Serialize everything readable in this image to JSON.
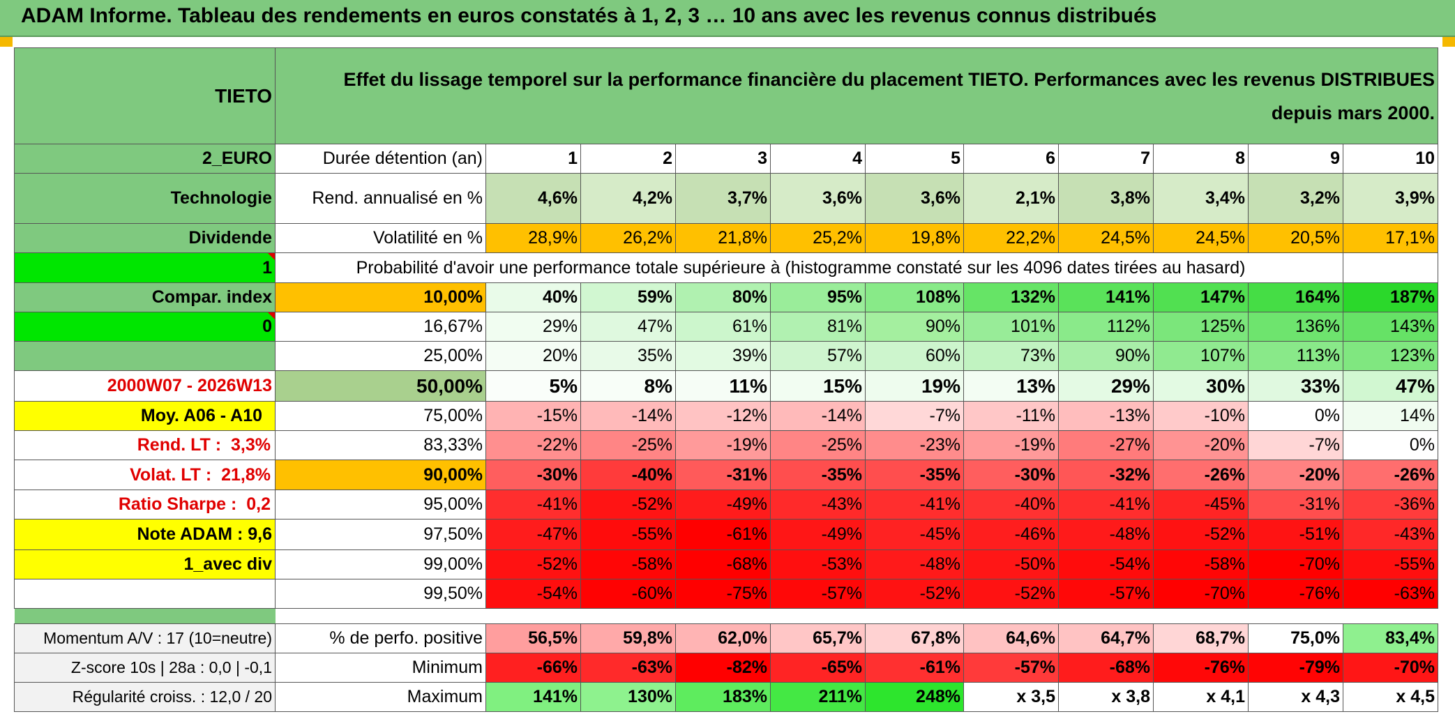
{
  "title": "ADAM Informe. Tableau des rendements en euros constatés à 1, 2, 3 … 10 ans avec les revenus connus distribués",
  "header": {
    "name": "TIETO",
    "description": "Effet du lissage temporel sur la performance financière du placement TIETO. Performances avec les revenus DISTRIBUES depuis mars 2000."
  },
  "left_panel": {
    "currency": "2_EURO",
    "sector": "Technologie",
    "dividend": "Dividende",
    "flag1": "1",
    "compar_index": "Compar. index",
    "flag0": "0",
    "period": "2000W07 - 2026W13",
    "moy": "Moy. A06 - A10",
    "rend_lt_label": "Rend. LT :",
    "rend_lt_value": "3,3%",
    "volat_lt_label": "Volat. LT :",
    "volat_lt_value": "21,8%",
    "sharpe_label": "Ratio Sharpe :",
    "sharpe_value": "0,2",
    "note": "Note ADAM : 9,6",
    "avec_div": "1_avec div",
    "momentum": "Momentum A/V : 17 (10=neutre)",
    "zscore": "Z-score 10s | 28a : 0,0 | -0,1",
    "regularite": "Régularité croiss. : 12,0 / 20"
  },
  "years_label": "Durée détention (an)",
  "years": [
    "1",
    "2",
    "3",
    "4",
    "5",
    "6",
    "7",
    "8",
    "9",
    "10"
  ],
  "rend_label": "Rend. annualisé en %",
  "rend": [
    "4,6%",
    "4,2%",
    "3,7%",
    "3,6%",
    "3,6%",
    "2,1%",
    "3,8%",
    "3,4%",
    "3,2%",
    "3,9%"
  ],
  "vol_label": "Volatilité en %",
  "vol": [
    "28,9%",
    "26,2%",
    "21,8%",
    "25,2%",
    "19,8%",
    "22,2%",
    "24,5%",
    "24,5%",
    "20,5%",
    "17,1%"
  ],
  "prob_header": "Probabilité d'avoir une performance totale supérieure à (histogramme constaté sur les 4096 dates tirées au hasard)",
  "quantiles": [
    {
      "p": "10,00%",
      "v": [
        "40%",
        "59%",
        "80%",
        "95%",
        "108%",
        "132%",
        "141%",
        "147%",
        "164%",
        "187%"
      ]
    },
    {
      "p": "16,67%",
      "v": [
        "29%",
        "47%",
        "61%",
        "81%",
        "90%",
        "101%",
        "112%",
        "125%",
        "136%",
        "143%"
      ]
    },
    {
      "p": "25,00%",
      "v": [
        "20%",
        "35%",
        "39%",
        "57%",
        "60%",
        "73%",
        "90%",
        "107%",
        "113%",
        "123%"
      ]
    },
    {
      "p": "50,00%",
      "v": [
        "5%",
        "8%",
        "11%",
        "15%",
        "19%",
        "13%",
        "29%",
        "30%",
        "33%",
        "47%"
      ]
    },
    {
      "p": "75,00%",
      "v": [
        "-15%",
        "-14%",
        "-12%",
        "-14%",
        "-7%",
        "-11%",
        "-13%",
        "-10%",
        "0%",
        "14%"
      ]
    },
    {
      "p": "83,33%",
      "v": [
        "-22%",
        "-25%",
        "-19%",
        "-25%",
        "-23%",
        "-19%",
        "-27%",
        "-20%",
        "-7%",
        "0%"
      ]
    },
    {
      "p": "90,00%",
      "v": [
        "-30%",
        "-40%",
        "-31%",
        "-35%",
        "-35%",
        "-30%",
        "-32%",
        "-26%",
        "-20%",
        "-26%"
      ]
    },
    {
      "p": "95,00%",
      "v": [
        "-41%",
        "-52%",
        "-49%",
        "-43%",
        "-41%",
        "-40%",
        "-41%",
        "-45%",
        "-31%",
        "-36%"
      ]
    },
    {
      "p": "97,50%",
      "v": [
        "-47%",
        "-55%",
        "-61%",
        "-49%",
        "-45%",
        "-46%",
        "-48%",
        "-52%",
        "-51%",
        "-43%"
      ]
    },
    {
      "p": "99,00%",
      "v": [
        "-52%",
        "-58%",
        "-68%",
        "-53%",
        "-48%",
        "-50%",
        "-54%",
        "-58%",
        "-70%",
        "-55%"
      ]
    },
    {
      "p": "99,50%",
      "v": [
        "-54%",
        "-60%",
        "-75%",
        "-57%",
        "-52%",
        "-52%",
        "-57%",
        "-70%",
        "-76%",
        "-63%"
      ]
    }
  ],
  "pos_label": "% de perfo. positive",
  "pos": [
    "56,5%",
    "59,8%",
    "62,0%",
    "65,7%",
    "67,8%",
    "64,6%",
    "64,7%",
    "68,7%",
    "75,0%",
    "83,4%"
  ],
  "min_label": "Minimum",
  "min": [
    "-66%",
    "-63%",
    "-82%",
    "-65%",
    "-61%",
    "-57%",
    "-68%",
    "-76%",
    "-79%",
    "-70%"
  ],
  "max_label": "Maximum",
  "max": [
    "141%",
    "130%",
    "183%",
    "211%",
    "248%",
    "x 3,5",
    "x 3,8",
    "x 4,1",
    "x 4,3",
    "x 4,5"
  ],
  "colors": {
    "header_green": "#7fc97f",
    "bright_green": "#00e600",
    "yellow": "#ffff00",
    "orange": "#ffc000",
    "rend_green": "#c6e0b4",
    "red_text": "#e00000"
  },
  "quantile_colors": [
    [
      "#e9fbe9",
      "#d1f7d1",
      "#b0f1b0",
      "#9aed9a",
      "#88ea88",
      "#66e466",
      "#5ae25a",
      "#51e051",
      "#45dd45",
      "#2bd82b"
    ],
    [
      "#f1fdf1",
      "#dff9df",
      "#ccf6cc",
      "#b1f1b1",
      "#a4ef9f",
      "#98ec98",
      "#8aea8a",
      "#7be67b",
      "#6ee46e",
      "#66e266"
    ],
    [
      "#f5fdf5",
      "#e8fae8",
      "#e2fae2",
      "#cff5cf",
      "#cdf5cd",
      "#c1f3c1",
      "#a8eea8",
      "#90ea90",
      "#89e989",
      "#80e780"
    ],
    [
      "#fafefa",
      "#f8fef8",
      "#f6fdf6",
      "#f2fdf2",
      "#eefcee",
      "#f3fdf3",
      "#e4fae4",
      "#e3fae3",
      "#e0f9e0",
      "#d1f7d1"
    ],
    [
      "#ffb3b3",
      "#ffbaba",
      "#ffc3c3",
      "#ffbaba",
      "#ffd8d8",
      "#ffc7c7",
      "#ffbdbd",
      "#ffcaca",
      "#ffffff",
      "#f0fcf0"
    ],
    [
      "#ff8f8f",
      "#ff8585",
      "#ff9a9a",
      "#ff8585",
      "#ff8c8c",
      "#ff9a9a",
      "#ff7b7b",
      "#ff9393",
      "#ffd6d6",
      "#ffffff"
    ],
    [
      "#ff5e5e",
      "#ff3b3b",
      "#ff5a5a",
      "#ff4e4e",
      "#ff4e4e",
      "#ff5e5e",
      "#ff5656",
      "#ff6e6e",
      "#ff8282",
      "#ff6e6e"
    ],
    [
      "#ff2e2e",
      "#ff1414",
      "#ff1c1c",
      "#ff2a2a",
      "#ff2e2e",
      "#ff3232",
      "#ff2e2e",
      "#ff2525",
      "#ff4e4e",
      "#ff3c3c"
    ],
    [
      "#ff1c1c",
      "#ff0c0c",
      "#ff0000",
      "#ff1616",
      "#ff2222",
      "#ff1e1e",
      "#ff1a1a",
      "#ff1212",
      "#ff1313",
      "#ff2828"
    ],
    [
      "#ff1212",
      "#ff0606",
      "#ff0000",
      "#ff0f0f",
      "#ff1a1a",
      "#ff1616",
      "#ff0c0c",
      "#ff0606",
      "#ff0000",
      "#ff0f0f"
    ],
    [
      "#ff0e0e",
      "#ff0202",
      "#ff0000",
      "#ff0808",
      "#ff1212",
      "#ff1212",
      "#ff0808",
      "#ff0000",
      "#ff0000",
      "#ff0000"
    ]
  ],
  "pos_colors": [
    "#ff9e9e",
    "#ffa9a9",
    "#ffb4b4",
    "#ffc6c6",
    "#ffd2d2",
    "#ffc2c2",
    "#ffc3c3",
    "#ffd6d6",
    "#ffffff",
    "#8ff08f"
  ],
  "min_colors": [
    "#ff2020",
    "#ff2a2a",
    "#ff0000",
    "#ff2424",
    "#ff3030",
    "#ff3a3a",
    "#ff1c1c",
    "#ff0808",
    "#ff0404",
    "#ff1616"
  ],
  "max_colors": [
    "#80f080",
    "#8ef28e",
    "#5eec5e",
    "#44e844",
    "#2de52d",
    "#ffffff",
    "#ffffff",
    "#ffffff",
    "#ffffff",
    "#ffffff"
  ]
}
